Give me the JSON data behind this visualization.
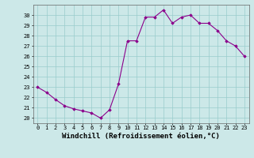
{
  "x": [
    0,
    1,
    2,
    3,
    4,
    5,
    6,
    7,
    8,
    9,
    10,
    11,
    12,
    13,
    14,
    15,
    16,
    17,
    18,
    19,
    20,
    21,
    22,
    23
  ],
  "y": [
    23.0,
    22.5,
    21.8,
    21.2,
    20.9,
    20.7,
    20.5,
    20.0,
    20.8,
    23.3,
    27.5,
    27.5,
    29.8,
    29.8,
    30.5,
    29.2,
    29.8,
    30.0,
    29.2,
    29.2,
    28.5,
    27.5,
    27.0,
    26.0
  ],
  "line_color": "#8B008B",
  "marker": "D",
  "markersize": 1.8,
  "linewidth": 0.8,
  "xlabel": "Windchill (Refroidissement éolien,°C)",
  "xlim": [
    -0.5,
    23.5
  ],
  "ylim": [
    19.5,
    31.0
  ],
  "yticks": [
    20,
    21,
    22,
    23,
    24,
    25,
    26,
    27,
    28,
    29,
    30
  ],
  "xticks": [
    0,
    1,
    2,
    3,
    4,
    5,
    6,
    7,
    8,
    9,
    10,
    11,
    12,
    13,
    14,
    15,
    16,
    17,
    18,
    19,
    20,
    21,
    22,
    23
  ],
  "bg_color": "#cce8e8",
  "grid_color": "#99cccc",
  "tick_label_fontsize": 5.0,
  "xlabel_fontsize": 6.5
}
